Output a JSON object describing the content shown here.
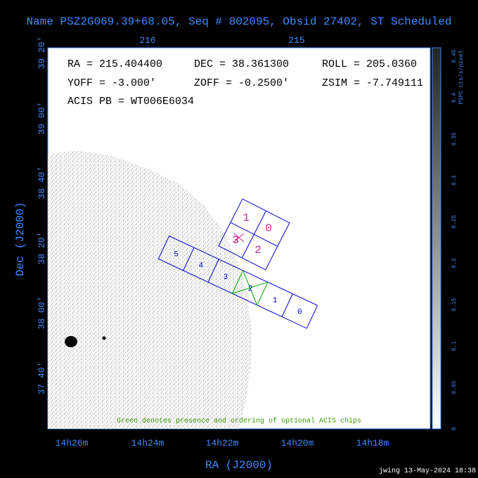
{
  "header": {
    "title": "Name PSZ2G069.39+68.05, Seq # 802095, Obsid 27402, ST Scheduled"
  },
  "axes": {
    "top_ticks": [
      "216",
      "215"
    ],
    "left_ticks": [
      "39 20'",
      "39 00'",
      "38 40'",
      "38 20'",
      "38 00'",
      "37 40'"
    ],
    "bottom_ticks": [
      "14h26m",
      "14h24m",
      "14h22m",
      "14h20m",
      "14h18m"
    ],
    "x_label": "RA (J2000)",
    "y_label": "Dec (J2000)"
  },
  "info": {
    "ra": "RA = 215.404400",
    "dec": "DEC = 38.361300",
    "roll": "ROLL = 205.0360",
    "yoff": "YOFF =  -3.000'",
    "zoff": "ZOFF = -0.2500'",
    "zsim": "ZSIM = -7.749111",
    "acis_pb": "ACIS PB = WT006E6034"
  },
  "acis_i": {
    "chips": [
      "1",
      "0",
      "3",
      "2"
    ]
  },
  "acis_s": {
    "chips": [
      "5",
      "4",
      "3",
      "2",
      "1",
      "0"
    ]
  },
  "colorbar": {
    "label": "PSPC cts/s/pixel",
    "ticks": [
      "0",
      "0.05",
      "0.1",
      "0.15",
      "0.2",
      "0.25",
      "0.3",
      "0.35",
      "0.4",
      "0.45"
    ]
  },
  "note": "Green denotes presence and ordering of optional ACIS chips",
  "footer": "jwing 13-May-2024 18:38"
}
